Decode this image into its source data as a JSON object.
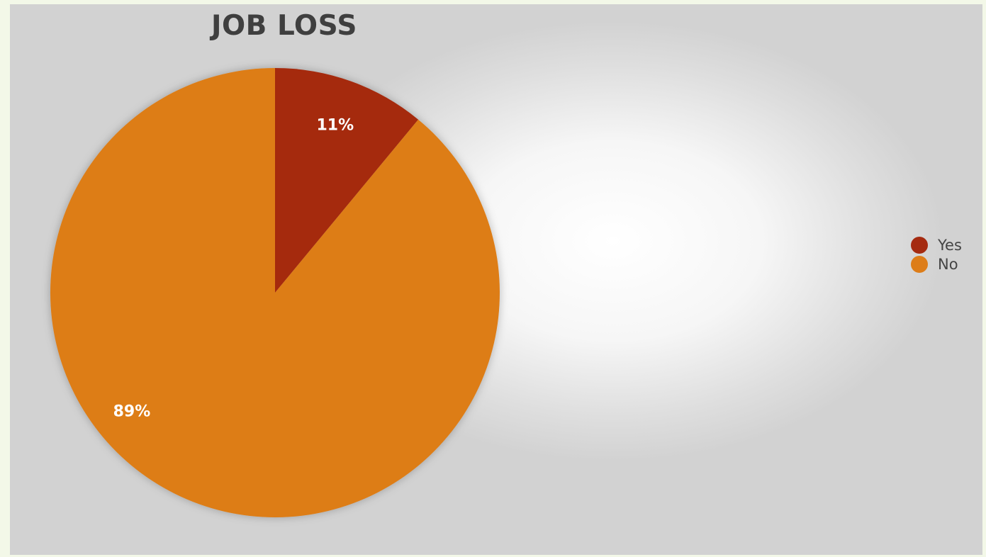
{
  "chart_data": {
    "type": "pie",
    "title": "JOB LOSS",
    "categories": [
      "Yes",
      "No"
    ],
    "values": [
      11,
      89
    ],
    "data_labels": [
      "11%",
      "89%"
    ],
    "colors": [
      "#a52b10",
      "#dd7d19"
    ],
    "legend_position": "right",
    "start_angle": "12 o'clock, clockwise"
  }
}
